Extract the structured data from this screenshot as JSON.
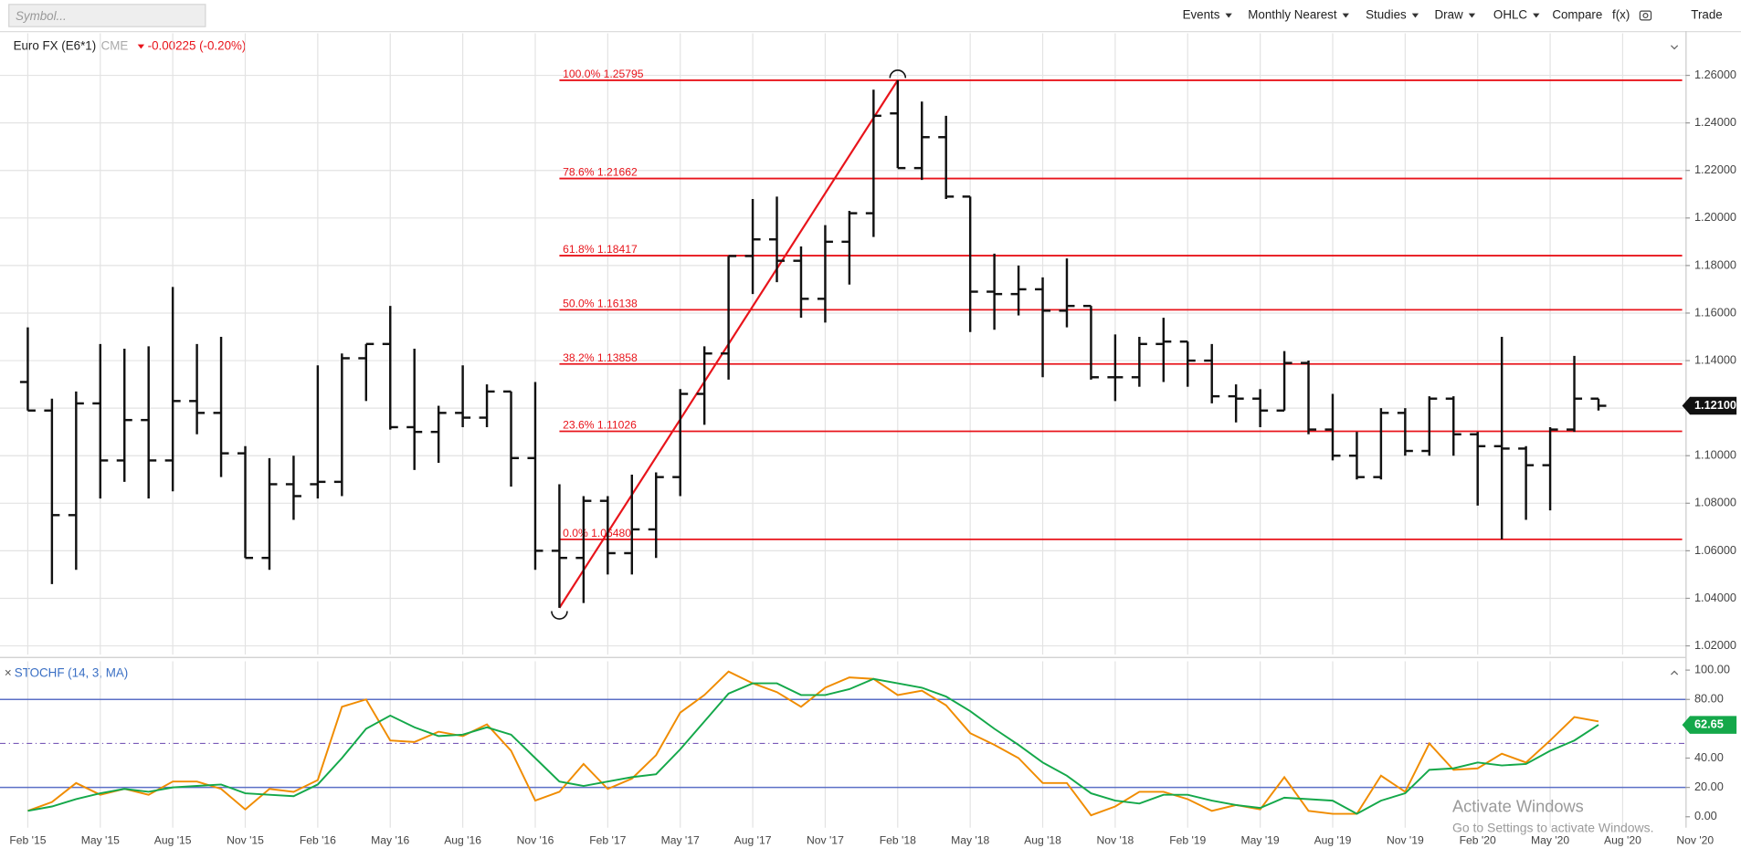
{
  "toolbar": {
    "symbol_placeholder": "Symbol...",
    "menus": [
      "Events",
      "Monthly Nearest",
      "Studies",
      "Draw",
      "OHLC"
    ],
    "items": [
      "Compare",
      "f(x)",
      "Trade"
    ]
  },
  "header": {
    "instrument": "Euro FX (E6*1)",
    "exchange": "CME",
    "change": "-0.00225 (-0.20%)"
  },
  "watermark": {
    "title": "Activate Windows",
    "text": "Go to Settings to activate Windows."
  },
  "chart_data": {
    "type": "ohlc",
    "xlim": [
      -1.15,
      68.6
    ],
    "xticks": [
      {
        "value": 0,
        "label": "Feb '15"
      },
      {
        "value": 3,
        "label": "May '15"
      },
      {
        "value": 6,
        "label": "Aug '15"
      },
      {
        "value": 9,
        "label": "Nov '15"
      },
      {
        "value": 12,
        "label": "Feb '16"
      },
      {
        "value": 15,
        "label": "May '16"
      },
      {
        "value": 18,
        "label": "Aug '16"
      },
      {
        "value": 21,
        "label": "Nov '16"
      },
      {
        "value": 24,
        "label": "Feb '17"
      },
      {
        "value": 27,
        "label": "May '17"
      },
      {
        "value": 30,
        "label": "Aug '17"
      },
      {
        "value": 33,
        "label": "Nov '17"
      },
      {
        "value": 36,
        "label": "Feb '18"
      },
      {
        "value": 39,
        "label": "May '18"
      },
      {
        "value": 42,
        "label": "Aug '18"
      },
      {
        "value": 45,
        "label": "Nov '18"
      },
      {
        "value": 48,
        "label": "Feb '19"
      },
      {
        "value": 51,
        "label": "May '19"
      },
      {
        "value": 54,
        "label": "Aug '19"
      },
      {
        "value": 57,
        "label": "Nov '19"
      },
      {
        "value": 60,
        "label": "Feb '20"
      },
      {
        "value": 63,
        "label": "May '20"
      },
      {
        "value": 66,
        "label": "Aug '20"
      },
      {
        "value": 69,
        "label": "Nov '20"
      }
    ],
    "ylim": [
      1.0163,
      1.2777
    ],
    "yticks": [
      {
        "value": 1.02,
        "label": "1.02000"
      },
      {
        "value": 1.04,
        "label": "1.04000"
      },
      {
        "value": 1.06,
        "label": "1.06000"
      },
      {
        "value": 1.08,
        "label": "1.08000"
      },
      {
        "value": 1.1,
        "label": "1.10000"
      },
      {
        "value": 1.12,
        "label": "1.12000"
      },
      {
        "value": 1.14,
        "label": "1.14000"
      },
      {
        "value": 1.16,
        "label": "1.16000"
      },
      {
        "value": 1.18,
        "label": "1.18000"
      },
      {
        "value": 1.2,
        "label": "1.20000"
      },
      {
        "value": 1.22,
        "label": "1.22000"
      },
      {
        "value": 1.24,
        "label": "1.24000"
      },
      {
        "value": 1.26,
        "label": "1.26000"
      }
    ],
    "grid": true,
    "color": "#111111",
    "open": [
      1.131,
      1.119,
      1.075,
      1.122,
      1.098,
      1.115,
      1.098,
      1.123,
      1.118,
      1.101,
      1.057,
      1.088,
      1.088,
      1.089,
      1.141,
      1.147,
      1.112,
      1.11,
      1.118,
      1.116,
      1.127,
      1.099,
      1.06,
      1.057,
      1.081,
      1.059,
      1.069,
      1.091,
      1.126,
      1.143,
      1.184,
      1.191,
      1.182,
      1.166,
      1.19,
      1.202,
      1.244,
      1.221,
      1.234,
      1.209,
      1.169,
      1.168,
      1.17,
      1.161,
      1.163,
      1.133,
      1.133,
      1.147,
      1.148,
      1.14,
      1.125,
      1.124,
      1.119,
      1.139,
      1.111,
      1.1,
      1.091,
      1.118,
      1.102,
      1.124,
      1.109,
      1.104,
      1.103,
      1.096,
      1.111,
      1.124
    ],
    "high": [
      1.154,
      1.124,
      1.127,
      1.147,
      1.145,
      1.146,
      1.171,
      1.147,
      1.15,
      1.104,
      1.099,
      1.1,
      1.138,
      1.143,
      1.147,
      1.163,
      1.145,
      1.121,
      1.138,
      1.13,
      1.127,
      1.131,
      1.088,
      1.083,
      1.083,
      1.092,
      1.093,
      1.128,
      1.146,
      1.184,
      1.208,
      1.209,
      1.188,
      1.197,
      1.203,
      1.254,
      1.25795,
      1.249,
      1.243,
      1.209,
      1.185,
      1.18,
      1.175,
      1.183,
      1.163,
      1.151,
      1.15,
      1.158,
      1.148,
      1.147,
      1.13,
      1.128,
      1.144,
      1.14,
      1.126,
      1.11,
      1.12,
      1.12,
      1.125,
      1.125,
      1.11,
      1.15,
      1.104,
      1.112,
      1.142,
      1.124
    ],
    "low": [
      1.119,
      1.046,
      1.052,
      1.082,
      1.089,
      1.082,
      1.085,
      1.109,
      1.091,
      1.057,
      1.052,
      1.073,
      1.082,
      1.083,
      1.123,
      1.111,
      1.094,
      1.097,
      1.112,
      1.112,
      1.087,
      1.052,
      1.036,
      1.038,
      1.05,
      1.05,
      1.057,
      1.083,
      1.113,
      1.132,
      1.168,
      1.173,
      1.158,
      1.156,
      1.172,
      1.192,
      1.221,
      1.216,
      1.208,
      1.152,
      1.153,
      1.159,
      1.133,
      1.154,
      1.132,
      1.123,
      1.129,
      1.131,
      1.129,
      1.122,
      1.114,
      1.112,
      1.119,
      1.109,
      1.098,
      1.09,
      1.09,
      1.1,
      1.1,
      1.1,
      1.079,
      1.0648,
      1.073,
      1.077,
      1.11,
      1.119
    ],
    "close": [
      1.119,
      1.075,
      1.122,
      1.098,
      1.115,
      1.098,
      1.123,
      1.118,
      1.101,
      1.057,
      1.088,
      1.083,
      1.089,
      1.141,
      1.147,
      1.112,
      1.11,
      1.118,
      1.116,
      1.127,
      1.099,
      1.06,
      1.057,
      1.081,
      1.059,
      1.069,
      1.091,
      1.126,
      1.143,
      1.184,
      1.191,
      1.182,
      1.166,
      1.19,
      1.202,
      1.243,
      1.221,
      1.234,
      1.209,
      1.169,
      1.168,
      1.17,
      1.161,
      1.163,
      1.133,
      1.133,
      1.147,
      1.148,
      1.14,
      1.125,
      1.124,
      1.119,
      1.139,
      1.111,
      1.1,
      1.091,
      1.118,
      1.102,
      1.124,
      1.109,
      1.104,
      1.103,
      1.096,
      1.111,
      1.124,
      1.121
    ],
    "last_price": {
      "value": 1.121,
      "label": "1.12100"
    },
    "fibonacci": {
      "color": "#e8141b",
      "levels": [
        {
          "value": 1.25795,
          "label": "100.0% 1.25795"
        },
        {
          "value": 1.21662,
          "label": "78.6% 1.21662"
        },
        {
          "value": 1.18417,
          "label": "61.8% 1.18417"
        },
        {
          "value": 1.16138,
          "label": "50.0% 1.16138"
        },
        {
          "value": 1.13858,
          "label": "38.2% 1.13858"
        },
        {
          "value": 1.11026,
          "label": "23.6% 1.11026"
        },
        {
          "value": 1.0648,
          "label": "0.0% 1.06480"
        }
      ]
    },
    "study": {
      "type": "line",
      "title": "STOCHF (14, 3, MA)",
      "ylim": [
        -7.5,
        106
      ],
      "yticks": [
        {
          "value": 0,
          "label": "0.00"
        },
        {
          "value": 20,
          "label": "20.00"
        },
        {
          "value": 40,
          "label": "40.00"
        },
        {
          "value": 60,
          "label": "60.00"
        },
        {
          "value": 80,
          "label": "80.00"
        },
        {
          "value": 100,
          "label": "100.00"
        }
      ],
      "bands": [
        80,
        20
      ],
      "midline": 50,
      "series": [
        {
          "color": "#f08c00",
          "values": [
            4,
            10,
            23,
            15,
            19,
            15,
            24,
            24,
            19,
            5,
            19,
            17,
            25,
            75,
            80,
            52,
            51,
            58,
            55,
            63,
            45,
            11,
            17,
            36,
            19,
            26,
            42,
            71,
            83,
            99,
            91,
            85,
            75,
            88,
            95,
            94,
            83,
            86,
            76,
            57,
            49,
            40,
            23,
            23,
            1,
            7,
            17,
            17,
            12,
            4,
            8,
            5,
            27,
            4,
            2,
            2,
            28,
            17,
            50,
            32,
            33,
            43,
            37,
            52,
            68,
            65
          ]
        },
        {
          "color": "#14a84a",
          "values": [
            4,
            7,
            12,
            16,
            19,
            17,
            20,
            21,
            22,
            16,
            15,
            14,
            22,
            40,
            60,
            69,
            61,
            55,
            56,
            61,
            56,
            40,
            24,
            21,
            24,
            27,
            29,
            46,
            65,
            84,
            91,
            91,
            83,
            83,
            87,
            94,
            91,
            88,
            82,
            72,
            60,
            49,
            37,
            28,
            16,
            11,
            9,
            15,
            15,
            11,
            8,
            6,
            13,
            12,
            11,
            2,
            11,
            16,
            32,
            33,
            37,
            35,
            36,
            45,
            52,
            62.65
          ],
          "value_labels": {
            "65": "62.65"
          }
        }
      ]
    }
  }
}
